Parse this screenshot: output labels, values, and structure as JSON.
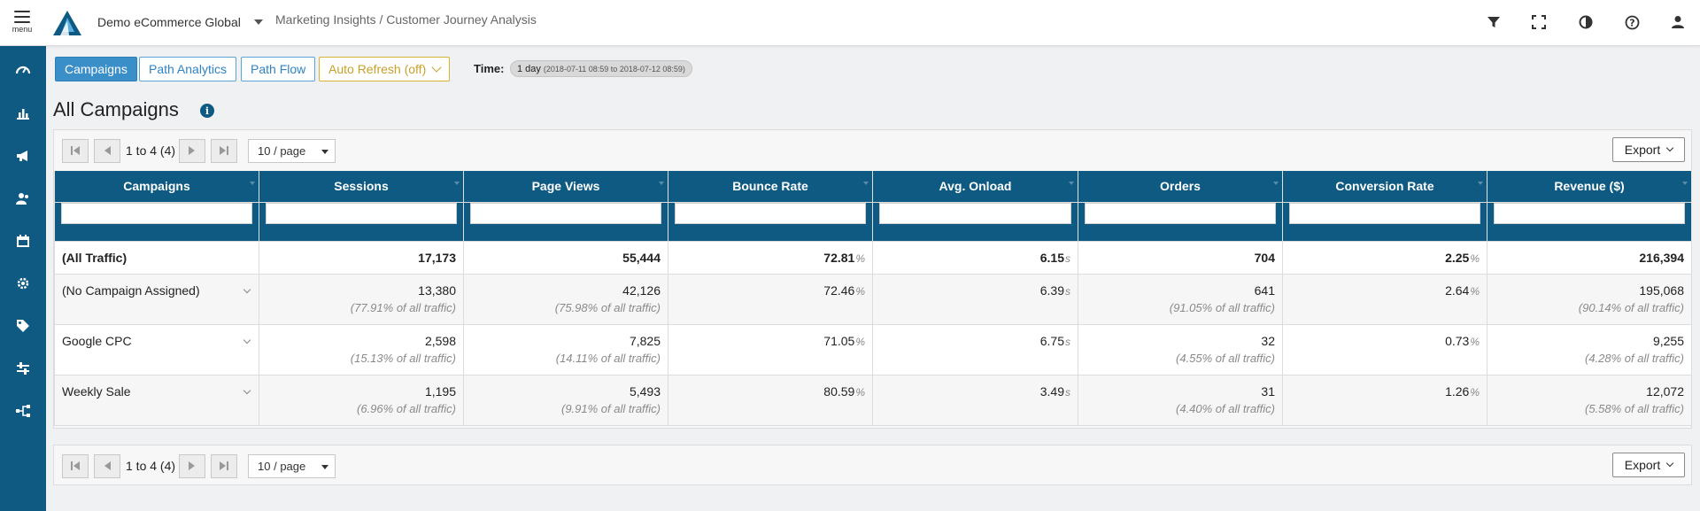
{
  "topbar": {
    "menu_label": "menu",
    "org_name": "Demo eCommerce Global",
    "breadcrumb": "Marketing Insights / Customer Journey Analysis",
    "icons": [
      "filter-icon",
      "fullscreen-icon",
      "contrast-icon",
      "help-icon",
      "user-icon"
    ]
  },
  "sidebar": {
    "items": [
      "dashboard-icon",
      "bar-chart-icon",
      "megaphone-icon",
      "users-icon",
      "calendar-icon",
      "settings-icon",
      "tag-icon",
      "sliders-icon",
      "flow-icon"
    ]
  },
  "toolbar": {
    "campaigns": "Campaigns",
    "path_analytics": "Path Analytics",
    "path_flow": "Path Flow",
    "auto_refresh": "Auto Refresh (off)",
    "time_label": "Time:",
    "time_range": "1 day",
    "time_detail": "(2018-07-11 08:59 to 2018-07-12 08:59)"
  },
  "page": {
    "title": "All Campaigns",
    "info_icon": "i"
  },
  "pager": {
    "range": "1 to 4 (4)",
    "page_size": "10 / page",
    "export": "Export"
  },
  "table": {
    "headers": [
      "Campaigns",
      "Sessions",
      "Page Views",
      "Bounce Rate",
      "Avg. Onload",
      "Orders",
      "Conversion Rate",
      "Revenue ($)"
    ],
    "total": {
      "name": "(All Traffic)",
      "sessions": "17,173",
      "page_views": "55,444",
      "bounce_rate": "72.81",
      "onload": "6.15",
      "orders": "704",
      "conversion": "2.25",
      "revenue": "216,394"
    },
    "units": {
      "percent": "%",
      "seconds": "s"
    },
    "rows": [
      {
        "name": "(No Campaign Assigned)",
        "sessions": "13,380",
        "sessions_pct": "(77.91% of all traffic)",
        "page_views": "42,126",
        "page_views_pct": "(75.98% of all traffic)",
        "bounce_rate": "72.46",
        "onload": "6.39",
        "orders": "641",
        "orders_pct": "(91.05% of all traffic)",
        "conversion": "2.64",
        "revenue": "195,068",
        "revenue_pct": "(90.14% of all traffic)"
      },
      {
        "name": "Google CPC",
        "sessions": "2,598",
        "sessions_pct": "(15.13% of all traffic)",
        "page_views": "7,825",
        "page_views_pct": "(14.11% of all traffic)",
        "bounce_rate": "71.05",
        "onload": "6.75",
        "orders": "32",
        "orders_pct": "(4.55% of all traffic)",
        "conversion": "0.73",
        "revenue": "9,255",
        "revenue_pct": "(4.28% of all traffic)"
      },
      {
        "name": "Weekly Sale",
        "sessions": "1,195",
        "sessions_pct": "(6.96% of all traffic)",
        "page_views": "5,493",
        "page_views_pct": "(9.91% of all traffic)",
        "bounce_rate": "80.59",
        "onload": "3.49",
        "orders": "31",
        "orders_pct": "(4.40% of all traffic)",
        "conversion": "1.26",
        "revenue": "12,072",
        "revenue_pct": "(5.58% of all traffic)"
      }
    ]
  },
  "colors": {
    "primary": "#0e5a82",
    "button_blue": "#3a8fc8",
    "warning": "#d9b336"
  }
}
